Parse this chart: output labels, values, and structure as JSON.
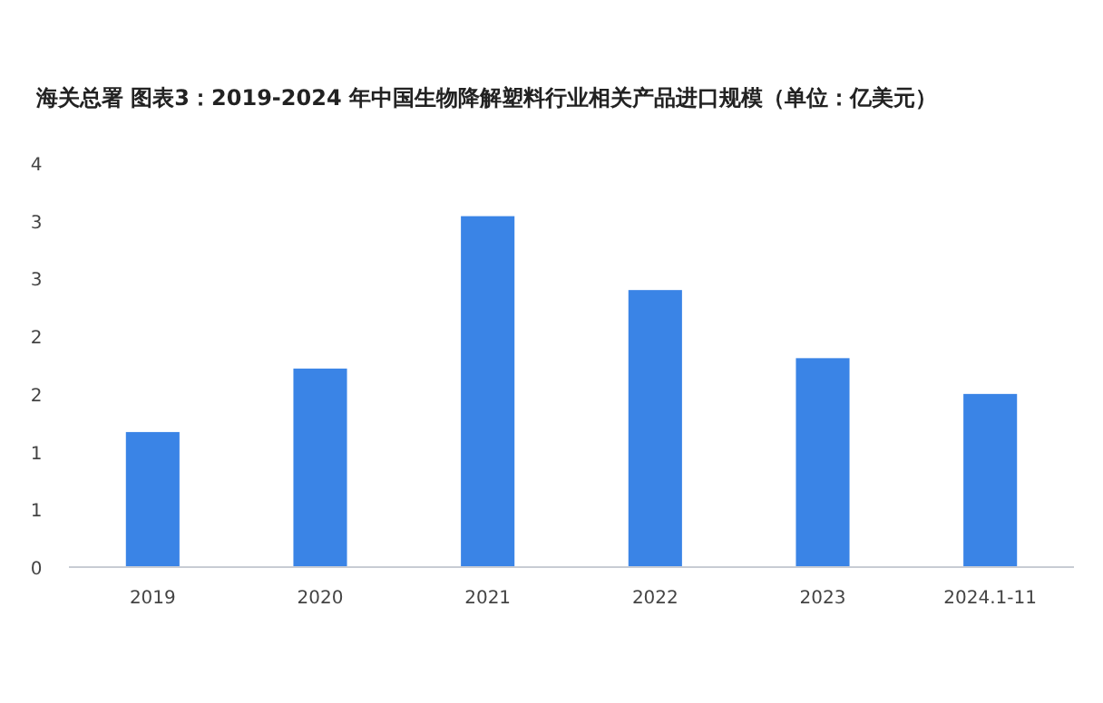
{
  "chart_data": {
    "type": "bar",
    "title": "海关总署  图表3：2019-2024 年中国生物降解塑料行业相关产品进口规模（单位：亿美元）",
    "categories": [
      "2019",
      "2020",
      "2021",
      "2022",
      "2023",
      "2024.1-11"
    ],
    "values": [
      1.17,
      1.72,
      3.04,
      2.4,
      1.81,
      1.5
    ],
    "color": "#3a84e6",
    "ylim": [
      0,
      3.5
    ],
    "yticks": [
      0,
      {
        "value": 0.5,
        "label": "1"
      },
      1,
      {
        "value": 1.5,
        "label": "2"
      },
      2,
      {
        "value": 2.5,
        "label": "3"
      },
      3,
      {
        "value": 3.5,
        "label": "4"
      }
    ],
    "grid": false
  }
}
